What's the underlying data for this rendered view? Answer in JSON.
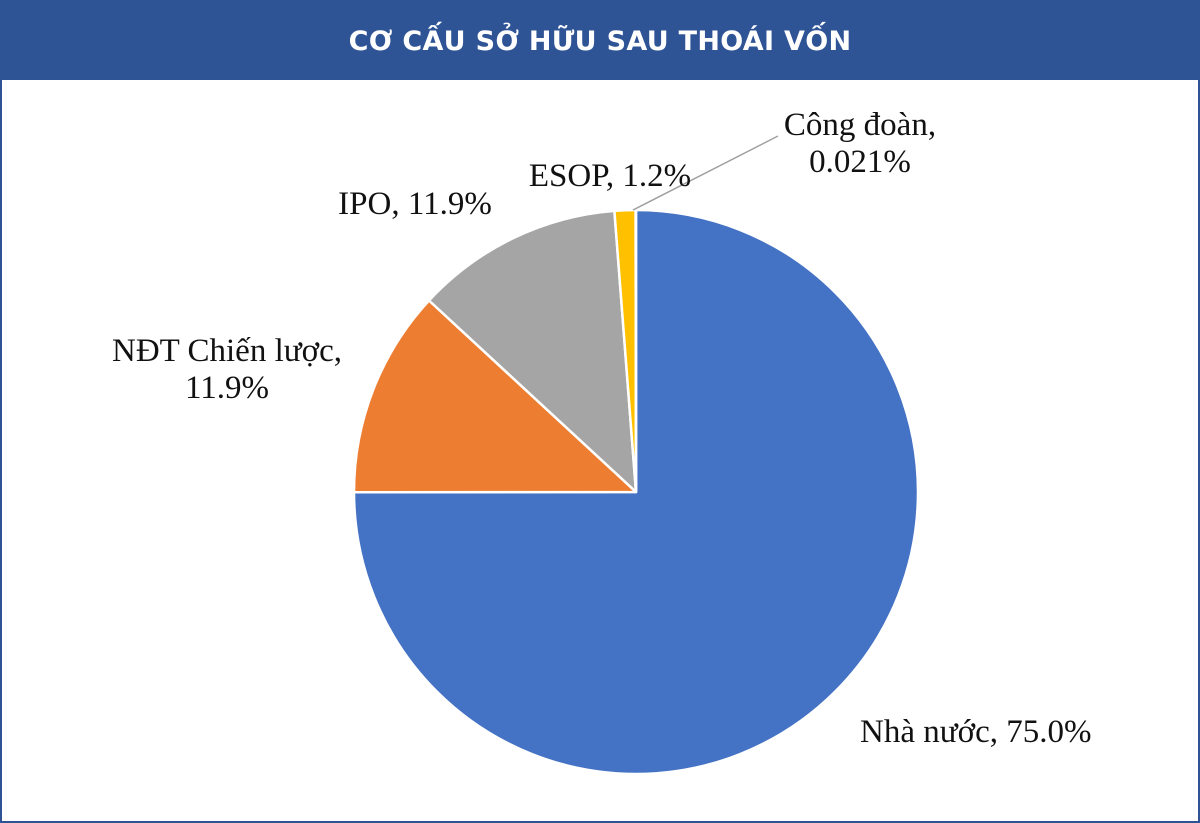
{
  "chart_data": {
    "type": "pie",
    "title": "CƠ CẤU SỞ HỮU SAU THOÁI VỐN",
    "slices": [
      {
        "name": "Nhà nước",
        "value": 75.0,
        "display": "75.0%",
        "color": "#4472c4"
      },
      {
        "name": "NĐT Chiến lược",
        "value": 11.9,
        "display": "11.9%",
        "color": "#ed7d31"
      },
      {
        "name": "IPO",
        "value": 11.9,
        "display": "11.9%",
        "color": "#a5a5a5"
      },
      {
        "name": "ESOP",
        "value": 1.2,
        "display": "1.2%",
        "color": "#ffc000"
      },
      {
        "name": "Công đoàn",
        "value": 0.021,
        "display": "0.021%",
        "color": "#5b9bd5"
      }
    ],
    "labels": {
      "nha_nuoc": "Nhà nước, 75.0%",
      "ndt_line1": "NĐT Chiến lược,",
      "ndt_line2": "11.9%",
      "ipo": "IPO, 11.9%",
      "esop": "ESOP, 1.2%",
      "cong_doan_line1": "Công đoàn,",
      "cong_doan_line2": "0.021%"
    },
    "legend": "none"
  }
}
